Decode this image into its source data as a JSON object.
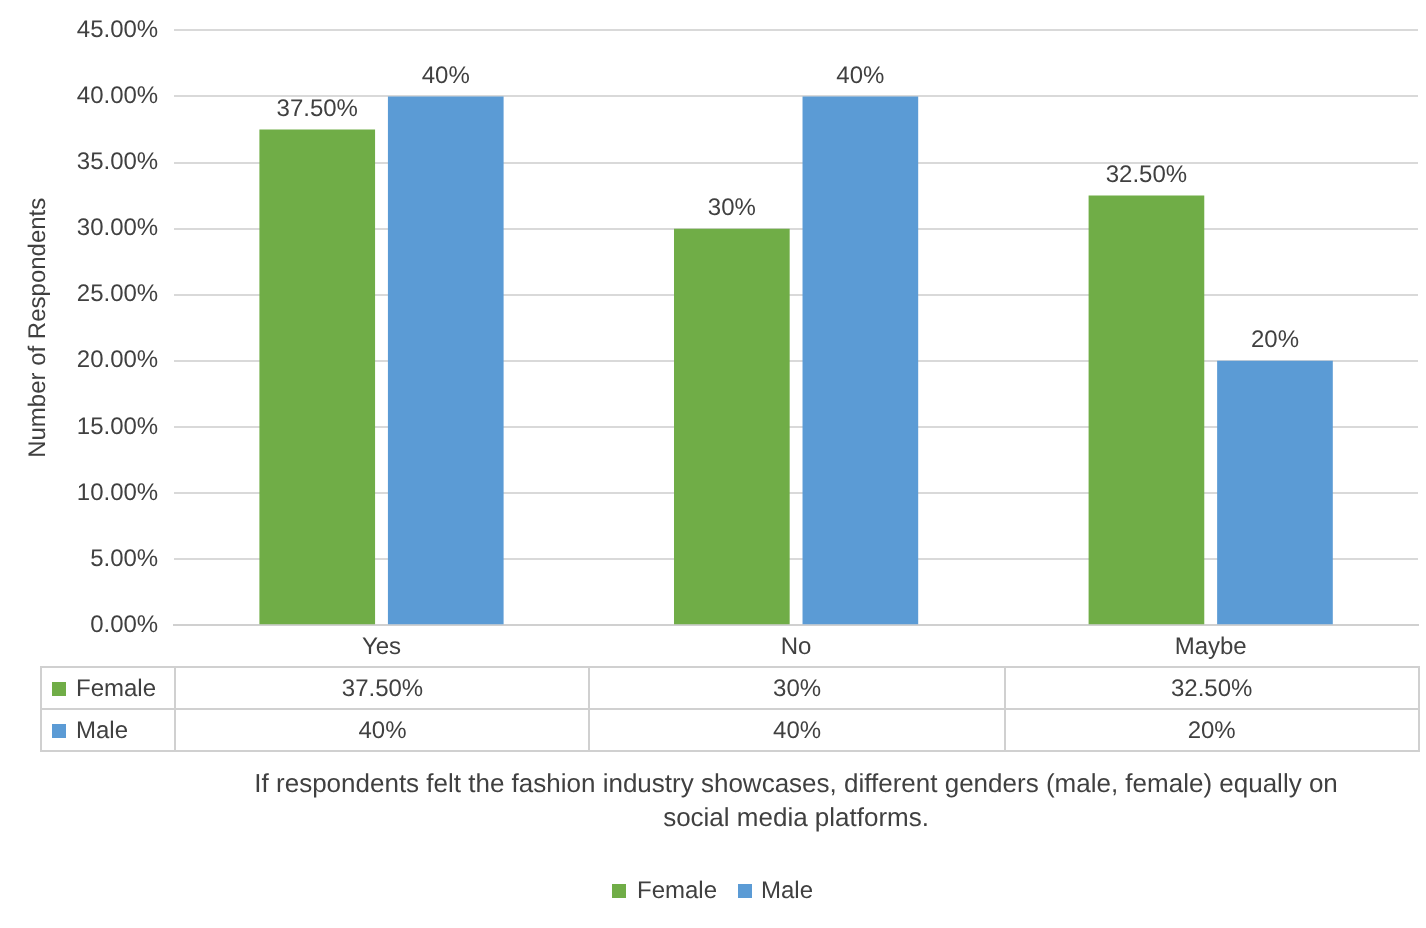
{
  "chart_data": {
    "type": "bar",
    "xlabel": "If respondents felt the fashion industry showcases, different genders (male, female) equally on social media platforms.",
    "ylabel": "Number of Respondents",
    "categories": [
      "Yes",
      "No",
      "Maybe"
    ],
    "series": [
      {
        "name": "Female",
        "color": "#70ad47",
        "values": [
          37.5,
          30,
          32.5
        ],
        "value_labels": [
          "37.50%",
          "30%",
          "32.50%"
        ]
      },
      {
        "name": "Male",
        "color": "#5b9bd5",
        "values": [
          40,
          40,
          20
        ],
        "value_labels": [
          "40%",
          "40%",
          "20%"
        ]
      }
    ],
    "ylim": [
      0,
      45
    ],
    "yticks": [
      {
        "value": 0,
        "label": "0.00%"
      },
      {
        "value": 5,
        "label": "5.00%"
      },
      {
        "value": 10,
        "label": "10.00%"
      },
      {
        "value": 15,
        "label": "15.00%"
      },
      {
        "value": 20,
        "label": "20.00%"
      },
      {
        "value": 25,
        "label": "25.00%"
      },
      {
        "value": 30,
        "label": "30.00%"
      },
      {
        "value": 35,
        "label": "35.00%"
      },
      {
        "value": 40,
        "label": "40.00%"
      },
      {
        "value": 45,
        "label": "45.00%"
      }
    ],
    "grid": "y",
    "legend": "bottom"
  }
}
